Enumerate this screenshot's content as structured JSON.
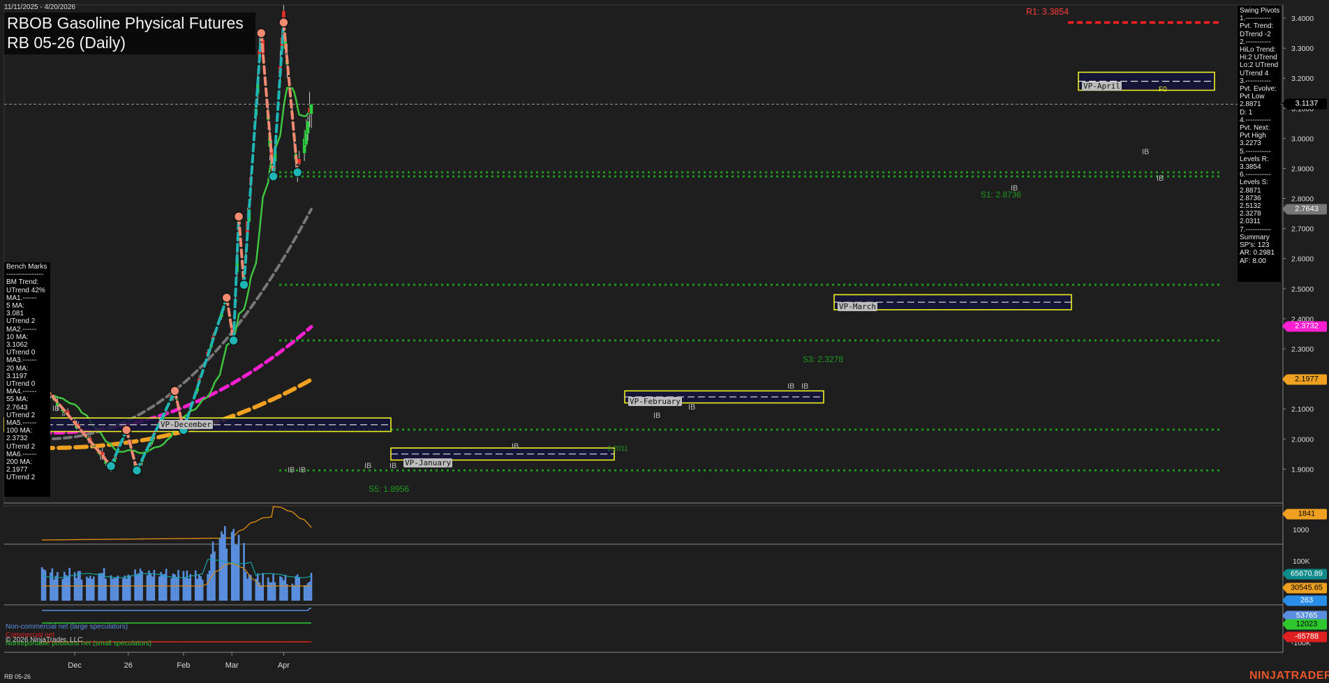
{
  "header": {
    "date_range": "11/11/2025 - 4/20/2026",
    "title_line1": "RBOB Gasoline Physical Futures",
    "title_line2": "RB 05-26 (Daily)",
    "symbol_footer": "RB 05-26",
    "copyright": "© 2026 NinjaTrader, LLC",
    "brand": "NINJATRADER"
  },
  "colors": {
    "background": "#1e1e1e",
    "up_candle": "#2ecc40",
    "down_candle": "#e8302a",
    "ma20": "#3ec43e",
    "ma55": "#777777",
    "ma100": "#ff1fd2",
    "ma200": "#f0a020",
    "swing_up": "#1fb5b5",
    "swing_down": "#f08a70",
    "zone_fill": "#14143c",
    "zone_border": "#f0f020",
    "resistance": "#ff2020",
    "support": "#1e9a1e",
    "cot_noncommercial": "#5a8fe0",
    "cot_commercial": "#e02020",
    "cot_small": "#2ec82e"
  },
  "bench_marks": [
    "Bench Marks",
    "----------------",
    "BM Trend:",
    "UTrend 42%",
    "MA1.------",
    "5 MA:",
    "3.081",
    "UTrend 2",
    "MA2.------",
    "10 MA:",
    "3.1062",
    "UTrend 0",
    "MA3.------",
    "20 MA:",
    "3.1197",
    "UTrend 0",
    "MA4.------",
    "55 MA:",
    "2.7643",
    "UTrend 2",
    "MA5.------",
    "100 MA:",
    "2.3732",
    "UTrend 2",
    "MA6.------",
    "200 MA:",
    "2.1977",
    "UTrend 2"
  ],
  "swing_pivots": [
    "Swing Pivots",
    "1.-----------",
    "Pvt. Trend:",
    "DTrend -2",
    "2.-----------",
    "HiLo Trend:",
    "Hi:2 UTrend",
    "Lo:2 UTrend",
    "UTrend 4",
    "3.-----------",
    "Pvt. Evolve:",
    "Pvt Low",
    "2.8871",
    "D: 1",
    "4.-----------",
    "Pvt. Next:",
    "Pvt High",
    "3.2273",
    "5.-----------",
    "Levels R:",
    "3.3854",
    "6.-----------",
    "Levels S:",
    "2.8871",
    "2.8736",
    "2.5132",
    "2.3278",
    "2.0311",
    "7.-----------",
    "Summary",
    "SP's: 123",
    "AR: 0.2981",
    "AF: 8.00"
  ],
  "annotations": {
    "r1": "R1: 3.3854",
    "s1": "S1: 2.8736",
    "s3": "S3: 2.3278",
    "s5": "S5: 1.8956",
    "s_jan": "0.2011",
    "f0": "F0",
    "ib": "IB"
  },
  "vp_zones": [
    {
      "label": "VP-December"
    },
    {
      "label": "VP-January"
    },
    {
      "label": "VP-February"
    },
    {
      "label": "VP-March"
    },
    {
      "label": "VP-April"
    }
  ],
  "price_axis": {
    "ticks": [
      "3.4000",
      "3.3000",
      "3.2000",
      "3.1000",
      "3.0000",
      "2.9000",
      "2.8000",
      "2.7000",
      "2.6000",
      "2.5000",
      "2.4000",
      "2.3000",
      "2.2000",
      "2.1000",
      "2.0000",
      "1.9000"
    ],
    "badges": [
      {
        "text": "3.1137",
        "value": 3.1137,
        "bg": "#000000",
        "fg": "#ffffff"
      },
      {
        "text": "2.7643",
        "value": 2.7643,
        "bg": "#777777",
        "fg": "#ffffff"
      },
      {
        "text": "2.3732",
        "value": 2.3732,
        "bg": "#ff1fd2",
        "fg": "#ffffff"
      },
      {
        "text": "2.1977",
        "value": 2.1977,
        "bg": "#f0a020",
        "fg": "#000000"
      }
    ]
  },
  "x_axis": {
    "labels": [
      "Dec",
      "26",
      "Feb",
      "Mar",
      "Apr"
    ]
  },
  "oi_panel": {
    "ticks": [
      "1000"
    ],
    "badge": "1841"
  },
  "volume_panel": {
    "ticks": [
      "100K"
    ],
    "badges": [
      {
        "text": "65670.89",
        "bg": "#0f8a8a",
        "fg": "#ffffff"
      },
      {
        "text": "30545.65",
        "bg": "#f0a020",
        "fg": "#000000"
      },
      {
        "text": "263",
        "bg": "#2a8ee8",
        "fg": "#ffffff"
      }
    ]
  },
  "cot_panel": {
    "legend": [
      {
        "text": "Non-commercial net (large speculators)",
        "color": "#5a8fe0"
      },
      {
        "text": "Commercial net",
        "color": "#e02020"
      },
      {
        "text": "Nonreportable positions net (small speculators)",
        "color": "#2ec82e"
      }
    ],
    "ticks": [
      "-100K"
    ],
    "badges": [
      {
        "text": "53765",
        "bg": "#5a8fe0",
        "fg": "#ffffff"
      },
      {
        "text": "12023",
        "bg": "#2ec82e",
        "fg": "#000000"
      },
      {
        "text": "-65788",
        "bg": "#e02020",
        "fg": "#ffffff"
      }
    ]
  },
  "chart_data": {
    "type": "candlestick",
    "title": "RBOB Gasoline Physical Futures RB 05-26 (Daily)",
    "xlabel": "",
    "ylabel": "",
    "ylim": [
      1.84,
      3.44
    ],
    "last_price": 3.1137,
    "swing_pivots": [
      {
        "date": "2025-11-14",
        "type": "high",
        "price": 2.17
      },
      {
        "date": "2025-12-22",
        "type": "low",
        "price": 1.91
      },
      {
        "date": "2025-12-31",
        "type": "high",
        "price": 2.03
      },
      {
        "date": "2026-01-06",
        "type": "low",
        "price": 1.8956
      },
      {
        "date": "2026-01-28",
        "type": "high",
        "price": 2.16
      },
      {
        "date": "2026-02-02",
        "type": "low",
        "price": 2.03
      },
      {
        "date": "2026-02-27",
        "type": "high",
        "price": 2.47
      },
      {
        "date": "2026-03-03",
        "type": "low",
        "price": 2.3278
      },
      {
        "date": "2026-03-06",
        "type": "high",
        "price": 2.74
      },
      {
        "date": "2026-03-09",
        "type": "low",
        "price": 2.5132
      },
      {
        "date": "2026-03-19",
        "type": "high",
        "price": 3.35
      },
      {
        "date": "2026-03-26",
        "type": "low",
        "price": 2.8736
      },
      {
        "date": "2026-04-01",
        "type": "high",
        "price": 3.3854
      },
      {
        "date": "2026-04-09",
        "type": "low",
        "price": 2.8871
      }
    ],
    "series": [
      {
        "name": "5 MA",
        "last": 3.081
      },
      {
        "name": "10 MA",
        "last": 3.1062
      },
      {
        "name": "20 MA",
        "last": 3.1197
      },
      {
        "name": "55 MA",
        "last": 2.7643
      },
      {
        "name": "100 MA",
        "last": 2.3732
      },
      {
        "name": "200 MA",
        "last": 2.1977
      }
    ],
    "levels_resistance": [
      3.3854
    ],
    "levels_support": [
      2.8871,
      2.8736,
      2.5132,
      2.3278,
      2.0311,
      1.8956
    ],
    "vp_zones": [
      {
        "name": "VP-December",
        "low": 2.025,
        "high": 2.07
      },
      {
        "name": "VP-January",
        "low": 1.93,
        "high": 1.97
      },
      {
        "name": "VP-February",
        "low": 2.12,
        "high": 2.16
      },
      {
        "name": "VP-March",
        "low": 2.43,
        "high": 2.48
      },
      {
        "name": "VP-April",
        "low": 3.16,
        "high": 3.22
      }
    ],
    "open_interest_last": 1841,
    "volume_last": 263,
    "volume_ma_last": [
      65670.89,
      30545.65
    ],
    "cot_last": {
      "noncommercial": 53765,
      "commercial": -65788,
      "nonreportable": 12023
    }
  }
}
